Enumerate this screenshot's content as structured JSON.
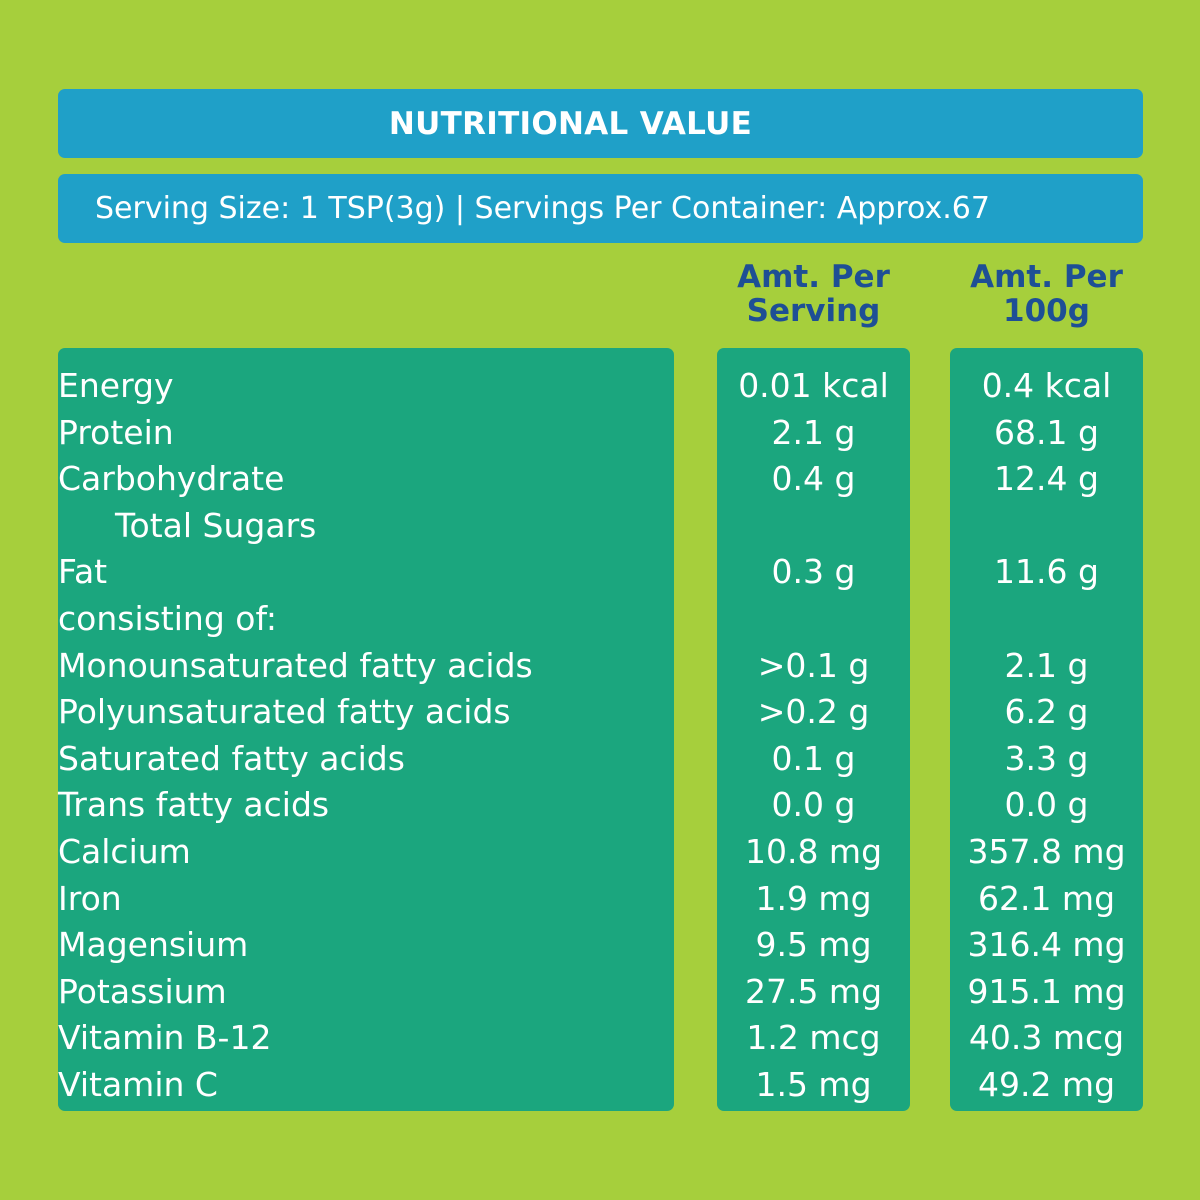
{
  "header": {
    "title": "NUTRITIONAL VALUE",
    "serving_info": "Serving Size: 1 TSP(3g) | Servings Per Container: Approx.67"
  },
  "columns": {
    "per_serving": [
      "Amt. Per",
      "Serving"
    ],
    "per_100g": [
      "Amt. Per",
      "100g"
    ]
  },
  "rows": [
    {
      "name": "Energy",
      "serving": "0.01 kcal",
      "per100": "0.4 kcal"
    },
    {
      "name": "Protein",
      "serving": "2.1 g",
      "per100": "68.1 g"
    },
    {
      "name": "Carbohydrate",
      "serving": "0.4 g",
      "per100": "12.4 g"
    },
    {
      "name": "Total Sugars",
      "serving": "",
      "per100": ""
    },
    {
      "name": "Fat",
      "serving": "0.3 g",
      "per100": "11.6 g"
    },
    {
      "name": "consisting of:",
      "serving": "",
      "per100": ""
    },
    {
      "name": "Monounsaturated fatty acids",
      "serving": ">0.1 g",
      "per100": "2.1 g"
    },
    {
      "name": "Polyunsaturated fatty acids",
      "serving": ">0.2 g",
      "per100": "6.2 g"
    },
    {
      "name": "Saturated fatty acids",
      "serving": "0.1 g",
      "per100": "3.3 g"
    },
    {
      "name": "Trans fatty acids",
      "serving": "0.0 g",
      "per100": "0.0 g"
    },
    {
      "name": "Calcium",
      "serving": "10.8 mg",
      "per100": "357.8 mg"
    },
    {
      "name": "Iron",
      "serving": "1.9 mg",
      "per100": "62.1 mg"
    },
    {
      "name": "Magensium",
      "serving": "9.5 mg",
      "per100": "316.4 mg"
    },
    {
      "name": "Potassium",
      "serving": "27.5 mg",
      "per100": "915.1 mg"
    },
    {
      "name": "Vitamin B-12",
      "serving": "1.2 mcg",
      "per100": "40.3 mcg"
    },
    {
      "name": "Vitamin C",
      "serving": "1.5 mg",
      "per100": "49.2 mg"
    }
  ],
  "colors": {
    "background": "#a6cf3c",
    "header_bar": "#1fa0c8",
    "panel": "#1ba67e",
    "column_heading": "#1e4f95"
  }
}
